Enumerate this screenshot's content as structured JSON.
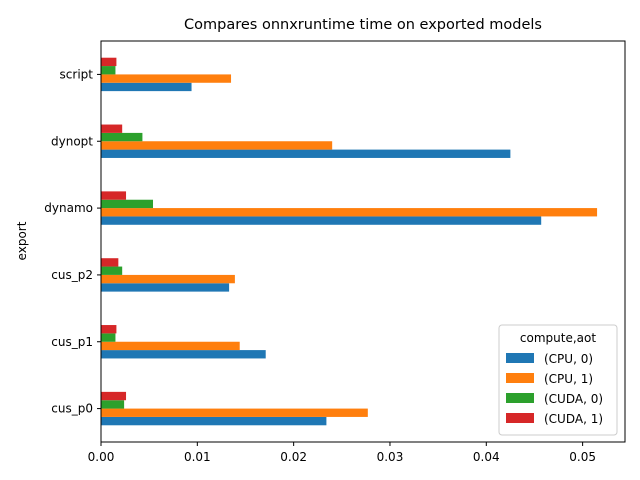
{
  "chart_data": {
    "type": "bar",
    "orientation": "horizontal",
    "title": "Compares onnxruntime time on exported models",
    "xlabel": "",
    "ylabel": "export",
    "categories": [
      "cus_p0",
      "cus_p1",
      "cus_p2",
      "dynamo",
      "dynopt",
      "script"
    ],
    "xlim": [
      0,
      0.0544
    ],
    "xticks": [
      "0.00",
      "0.01",
      "0.02",
      "0.03",
      "0.04",
      "0.05"
    ],
    "legend_title": "compute,aot",
    "legend_position": "lower right",
    "grid": false,
    "series": [
      {
        "name": "(CPU, 0)",
        "color": "#1f77b4",
        "values": [
          0.0234,
          0.0171,
          0.0133,
          0.0457,
          0.0425,
          0.0094
        ]
      },
      {
        "name": "(CPU, 1)",
        "color": "#ff7f0e",
        "values": [
          0.0277,
          0.0144,
          0.0139,
          0.0515,
          0.024,
          0.0135
        ]
      },
      {
        "name": "(CUDA, 0)",
        "color": "#2ca02c",
        "values": [
          0.0024,
          0.0015,
          0.0022,
          0.0054,
          0.0043,
          0.0015
        ]
      },
      {
        "name": "(CUDA, 1)",
        "color": "#d62728",
        "values": [
          0.0026,
          0.0016,
          0.0018,
          0.0026,
          0.0022,
          0.0016
        ]
      }
    ]
  }
}
